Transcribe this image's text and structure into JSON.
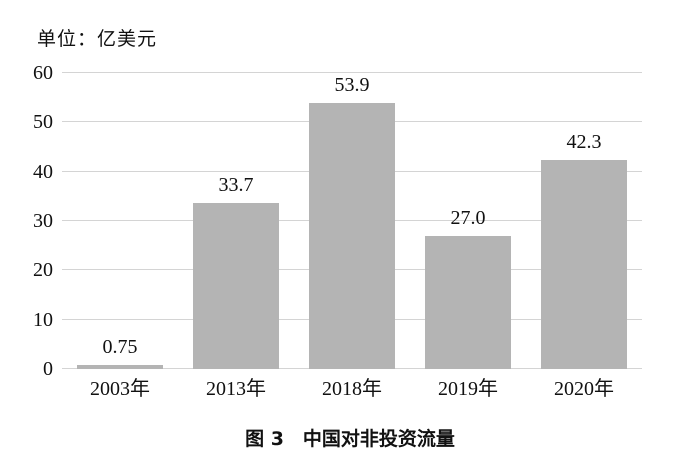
{
  "page": {
    "background": "#ffffff"
  },
  "unit_label": "单位：亿美元",
  "caption": "图 3　中国对非投资流量",
  "chart_data": {
    "type": "bar",
    "title": "图 3 中国对非投资流量",
    "subtitle": "",
    "unit": "单位：亿美元",
    "categories": [
      "2003年",
      "2013年",
      "2018年",
      "2019年",
      "2020年"
    ],
    "values": [
      0.75,
      33.7,
      53.9,
      27.0,
      42.3
    ],
    "value_labels": [
      "0.75",
      "33.7",
      "53.9",
      "27.0",
      "42.3"
    ],
    "xlabel": "",
    "ylabel": "",
    "ylim": [
      0,
      60
    ],
    "yticks": [
      0,
      10,
      20,
      30,
      40,
      50,
      60
    ],
    "grid": true,
    "legend": "none",
    "bar_color": "#b4b4b4",
    "gridline_color": "#d4d4d4",
    "text_color": "#111111"
  }
}
